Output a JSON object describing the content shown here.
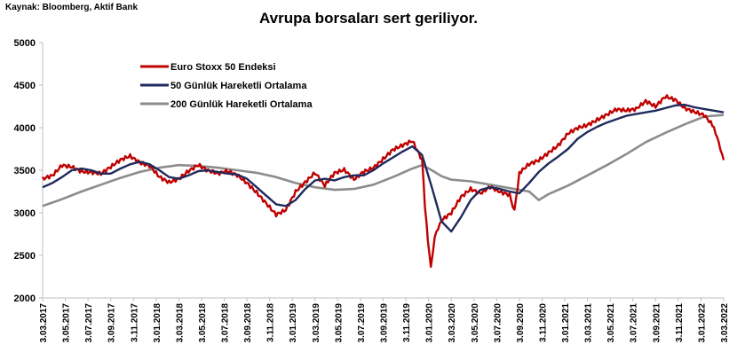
{
  "header": {
    "source": "Kaynak: Bloomberg, Aktif Bank",
    "title": "Avrupa borsaları sert geriliyor."
  },
  "chart_data": {
    "type": "line",
    "title": "Avrupa borsaları sert geriliyor.",
    "xlabel": "",
    "ylabel": "",
    "ylim": [
      2000,
      5000
    ],
    "yticks": [
      "2000",
      "2500",
      "3000",
      "3500",
      "4000",
      "4500",
      "5000"
    ],
    "xticks": [
      "3.03.2017",
      "3.05.2017",
      "3.07.2017",
      "3.09.2017",
      "3.11.2017",
      "3.01.2018",
      "3.03.2018",
      "3.05.2018",
      "3.07.2018",
      "3.09.2018",
      "3.11.2018",
      "3.01.2019",
      "3.03.2019",
      "3.05.2019",
      "3.07.2019",
      "3.09.2019",
      "3.11.2019",
      "3.01.2020",
      "3.03.2020",
      "3.05.2020",
      "3.07.2020",
      "3.09.2020",
      "3.11.2020",
      "3.01.2021",
      "3.03.2021",
      "3.05.2021",
      "3.07.2021",
      "3.09.2021",
      "3.11.2021",
      "3.01.2022",
      "3.03.2022"
    ],
    "grid": false,
    "legend_position": "top-left",
    "x_unit": "months since 3.03.2017",
    "series": [
      {
        "name": "Euro Stoxx 50 Endeksi",
        "color": "#c00000",
        "points": [
          [
            0,
            3400
          ],
          [
            1,
            3450
          ],
          [
            2,
            3580
          ],
          [
            3,
            3560
          ],
          [
            4,
            3500
          ],
          [
            5,
            3480
          ],
          [
            6,
            3450
          ],
          [
            7,
            3520
          ],
          [
            8,
            3600
          ],
          [
            9,
            3650
          ],
          [
            10,
            3580
          ],
          [
            11,
            3560
          ],
          [
            12,
            3440
          ],
          [
            13,
            3380
          ],
          [
            14,
            3420
          ],
          [
            15,
            3500
          ],
          [
            16,
            3560
          ],
          [
            17,
            3480
          ],
          [
            18,
            3440
          ],
          [
            19,
            3470
          ],
          [
            20,
            3430
          ],
          [
            21,
            3350
          ],
          [
            22,
            3250
          ],
          [
            23,
            3130
          ],
          [
            24,
            3000
          ],
          [
            25,
            3050
          ],
          [
            26,
            3250
          ],
          [
            27,
            3350
          ],
          [
            28,
            3450
          ],
          [
            29,
            3300
          ],
          [
            30,
            3450
          ],
          [
            31,
            3500
          ],
          [
            32,
            3400
          ],
          [
            33,
            3500
          ],
          [
            34,
            3550
          ],
          [
            35,
            3650
          ],
          [
            36,
            3750
          ],
          [
            37,
            3790
          ],
          [
            38,
            3830
          ],
          [
            39,
            3600
          ],
          [
            39.3,
            3050
          ],
          [
            39.6,
            2700
          ],
          [
            39.9,
            2400
          ],
          [
            40.3,
            2700
          ],
          [
            41,
            2900
          ],
          [
            42,
            3000
          ],
          [
            43,
            3200
          ],
          [
            44,
            3300
          ],
          [
            45,
            3250
          ],
          [
            46,
            3320
          ],
          [
            47,
            3250
          ],
          [
            48,
            3200
          ],
          [
            48.5,
            3000
          ],
          [
            49,
            3450
          ],
          [
            50,
            3550
          ],
          [
            51,
            3600
          ],
          [
            52,
            3700
          ],
          [
            53,
            3800
          ],
          [
            54,
            3950
          ],
          [
            55,
            4020
          ],
          [
            56,
            4050
          ],
          [
            57,
            4100
          ],
          [
            58,
            4150
          ],
          [
            59,
            4200
          ],
          [
            60,
            4180
          ],
          [
            61,
            4200
          ],
          [
            62,
            4300
          ],
          [
            63,
            4250
          ],
          [
            64,
            4380
          ],
          [
            65,
            4350
          ],
          [
            66,
            4250
          ],
          [
            67,
            4200
          ],
          [
            68,
            4150
          ],
          [
            69,
            4000
          ],
          [
            69.5,
            3800
          ],
          [
            70,
            3620
          ]
        ]
      },
      {
        "name": "50 Günlük Hareketli Ortalama",
        "color": "#1f2a5c",
        "points": [
          [
            0,
            3300
          ],
          [
            1,
            3350
          ],
          [
            2,
            3420
          ],
          [
            3,
            3500
          ],
          [
            4,
            3520
          ],
          [
            5,
            3500
          ],
          [
            6,
            3460
          ],
          [
            7,
            3460
          ],
          [
            8,
            3520
          ],
          [
            9,
            3570
          ],
          [
            10,
            3600
          ],
          [
            11,
            3570
          ],
          [
            12,
            3500
          ],
          [
            13,
            3420
          ],
          [
            14,
            3400
          ],
          [
            15,
            3440
          ],
          [
            16,
            3490
          ],
          [
            17,
            3500
          ],
          [
            18,
            3480
          ],
          [
            19,
            3460
          ],
          [
            20,
            3450
          ],
          [
            21,
            3400
          ],
          [
            22,
            3300
          ],
          [
            23,
            3200
          ],
          [
            24,
            3100
          ],
          [
            25,
            3080
          ],
          [
            26,
            3150
          ],
          [
            27,
            3280
          ],
          [
            28,
            3380
          ],
          [
            29,
            3400
          ],
          [
            30,
            3380
          ],
          [
            31,
            3420
          ],
          [
            32,
            3440
          ],
          [
            33,
            3440
          ],
          [
            34,
            3500
          ],
          [
            35,
            3580
          ],
          [
            36,
            3650
          ],
          [
            37,
            3720
          ],
          [
            38,
            3780
          ],
          [
            39,
            3680
          ],
          [
            40,
            3300
          ],
          [
            41,
            2900
          ],
          [
            42,
            2780
          ],
          [
            43,
            2950
          ],
          [
            44,
            3150
          ],
          [
            45,
            3270
          ],
          [
            46,
            3300
          ],
          [
            47,
            3280
          ],
          [
            48,
            3250
          ],
          [
            49,
            3230
          ],
          [
            50,
            3350
          ],
          [
            51,
            3480
          ],
          [
            52,
            3580
          ],
          [
            53,
            3660
          ],
          [
            54,
            3750
          ],
          [
            55,
            3870
          ],
          [
            56,
            3950
          ],
          [
            57,
            4010
          ],
          [
            58,
            4060
          ],
          [
            59,
            4100
          ],
          [
            60,
            4140
          ],
          [
            61,
            4160
          ],
          [
            62,
            4180
          ],
          [
            63,
            4200
          ],
          [
            64,
            4230
          ],
          [
            65,
            4260
          ],
          [
            66,
            4270
          ],
          [
            67,
            4240
          ],
          [
            68,
            4220
          ],
          [
            69,
            4200
          ],
          [
            70,
            4180
          ]
        ]
      },
      {
        "name": "200 Günlük Hareketli Ortalama",
        "color": "#8c8c8c",
        "points": [
          [
            0,
            3080
          ],
          [
            2,
            3160
          ],
          [
            4,
            3250
          ],
          [
            6,
            3330
          ],
          [
            8,
            3410
          ],
          [
            10,
            3480
          ],
          [
            12,
            3530
          ],
          [
            14,
            3560
          ],
          [
            16,
            3550
          ],
          [
            18,
            3530
          ],
          [
            20,
            3500
          ],
          [
            22,
            3470
          ],
          [
            24,
            3420
          ],
          [
            26,
            3350
          ],
          [
            28,
            3300
          ],
          [
            30,
            3270
          ],
          [
            32,
            3280
          ],
          [
            34,
            3330
          ],
          [
            36,
            3420
          ],
          [
            38,
            3520
          ],
          [
            39,
            3560
          ],
          [
            40,
            3500
          ],
          [
            41,
            3430
          ],
          [
            42,
            3390
          ],
          [
            44,
            3370
          ],
          [
            46,
            3330
          ],
          [
            48,
            3290
          ],
          [
            50,
            3250
          ],
          [
            51,
            3150
          ],
          [
            52,
            3220
          ],
          [
            54,
            3320
          ],
          [
            56,
            3440
          ],
          [
            58,
            3560
          ],
          [
            60,
            3690
          ],
          [
            62,
            3830
          ],
          [
            64,
            3940
          ],
          [
            66,
            4040
          ],
          [
            68,
            4130
          ],
          [
            70,
            4150
          ]
        ]
      }
    ]
  }
}
